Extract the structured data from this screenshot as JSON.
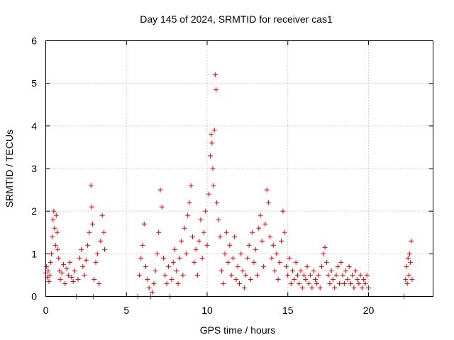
{
  "chart_data": {
    "type": "scatter",
    "title": "Day 145 of 2024, SRMTID for receiver cas1",
    "xlabel": "GPS time / hours",
    "ylabel": "SRMTID / TECUs",
    "xlim": [
      0,
      24
    ],
    "ylim": [
      0,
      6
    ],
    "xticks": [
      "0",
      "5",
      "10",
      "15",
      "20"
    ],
    "yticks": [
      "0",
      "1",
      "2",
      "3",
      "4",
      "5",
      "6"
    ],
    "grid": true,
    "marker": "+",
    "series_color": "#e00000",
    "series": [
      {
        "name": "cas1",
        "points": [
          [
            0.0,
            0.55
          ],
          [
            0.05,
            0.7
          ],
          [
            0.1,
            0.45
          ],
          [
            0.15,
            0.6
          ],
          [
            0.2,
            0.35
          ],
          [
            0.25,
            0.5
          ],
          [
            0.3,
            0.8
          ],
          [
            0.35,
            1.0
          ],
          [
            0.4,
            1.4
          ],
          [
            0.45,
            1.8
          ],
          [
            0.5,
            2.0
          ],
          [
            0.55,
            1.6
          ],
          [
            0.6,
            1.2
          ],
          [
            0.65,
            1.9
          ],
          [
            0.7,
            1.5
          ],
          [
            0.75,
            1.1
          ],
          [
            0.8,
            0.9
          ],
          [
            0.85,
            0.6
          ],
          [
            0.9,
            0.4
          ],
          [
            1.0,
            0.55
          ],
          [
            1.1,
            0.75
          ],
          [
            1.2,
            0.3
          ],
          [
            1.3,
            0.65
          ],
          [
            1.4,
            0.5
          ],
          [
            1.5,
            0.8
          ],
          [
            1.6,
            0.45
          ],
          [
            1.7,
            0.35
          ],
          [
            1.8,
            0.6
          ],
          [
            1.9,
            0.0
          ],
          [
            2.0,
            0.4
          ],
          [
            2.1,
            0.9
          ],
          [
            2.2,
            1.1
          ],
          [
            2.3,
            0.7
          ],
          [
            2.4,
            0.5
          ],
          [
            2.5,
            0.85
          ],
          [
            2.6,
            1.2
          ],
          [
            2.7,
            1.5
          ],
          [
            2.8,
            2.6
          ],
          [
            2.85,
            2.1
          ],
          [
            2.9,
            1.7
          ],
          [
            2.95,
            0.0
          ],
          [
            3.0,
            0.4
          ],
          [
            3.1,
            0.8
          ],
          [
            3.2,
            1.0
          ],
          [
            3.3,
            0.3
          ],
          [
            3.4,
            1.3
          ],
          [
            3.5,
            1.9
          ],
          [
            3.6,
            1.5
          ],
          [
            3.65,
            1.1
          ],
          [
            5.7,
            0.0
          ],
          [
            5.8,
            0.5
          ],
          [
            5.9,
            0.9
          ],
          [
            6.0,
            1.2
          ],
          [
            6.1,
            1.7
          ],
          [
            6.2,
            0.7
          ],
          [
            6.3,
            0.4
          ],
          [
            6.4,
            0.2
          ],
          [
            6.5,
            0.0
          ],
          [
            6.6,
            0.1
          ],
          [
            6.7,
            0.3
          ],
          [
            6.8,
            0.6
          ],
          [
            6.9,
            1.0
          ],
          [
            7.0,
            1.5
          ],
          [
            7.1,
            2.5
          ],
          [
            7.2,
            2.1
          ],
          [
            7.3,
            0.9
          ],
          [
            7.4,
            0.5
          ],
          [
            7.5,
            0.3
          ],
          [
            7.6,
            0.7
          ],
          [
            7.7,
            0.0
          ],
          [
            7.8,
            0.4
          ],
          [
            7.9,
            0.8
          ],
          [
            8.0,
            1.1
          ],
          [
            8.1,
            0.6
          ],
          [
            8.2,
            0.3
          ],
          [
            8.3,
            0.9
          ],
          [
            8.4,
            1.3
          ],
          [
            8.5,
            0.5
          ],
          [
            8.6,
            1.6
          ],
          [
            8.7,
            1.0
          ],
          [
            8.8,
            1.9
          ],
          [
            8.9,
            2.2
          ],
          [
            9.0,
            2.6
          ],
          [
            9.1,
            1.4
          ],
          [
            9.2,
            0.8
          ],
          [
            9.3,
            1.1
          ],
          [
            9.4,
            0.5
          ],
          [
            9.5,
            1.3
          ],
          [
            9.6,
            1.8
          ],
          [
            9.7,
            0.9
          ],
          [
            9.8,
            1.5
          ],
          [
            9.9,
            2.0
          ],
          [
            10.0,
            1.2
          ],
          [
            10.1,
            2.4
          ],
          [
            10.2,
            3.3
          ],
          [
            10.25,
            3.8
          ],
          [
            10.3,
            3.6
          ],
          [
            10.35,
            3.0
          ],
          [
            10.4,
            2.6
          ],
          [
            10.45,
            3.9
          ],
          [
            10.5,
            5.2
          ],
          [
            10.55,
            4.85
          ],
          [
            10.6,
            2.2
          ],
          [
            10.7,
            1.8
          ],
          [
            10.8,
            1.4
          ],
          [
            10.9,
            0.6
          ],
          [
            11.0,
            0.3
          ],
          [
            11.1,
            1.0
          ],
          [
            11.2,
            1.5
          ],
          [
            11.3,
            0.8
          ],
          [
            11.4,
            1.2
          ],
          [
            11.5,
            0.5
          ],
          [
            11.6,
            0.9
          ],
          [
            11.7,
            1.4
          ],
          [
            11.8,
            0.4
          ],
          [
            11.9,
            0.7
          ],
          [
            12.0,
            0.3
          ],
          [
            12.1,
            1.0
          ],
          [
            12.2,
            0.6
          ],
          [
            12.3,
            0.2
          ],
          [
            12.4,
            0.5
          ],
          [
            12.5,
            0.9
          ],
          [
            12.6,
            1.2
          ],
          [
            12.7,
            0.4
          ],
          [
            12.8,
            1.5
          ],
          [
            12.9,
            0.8
          ],
          [
            13.0,
            1.1
          ],
          [
            13.1,
            0.5
          ],
          [
            13.2,
            1.6
          ],
          [
            13.3,
            1.9
          ],
          [
            13.4,
            1.3
          ],
          [
            13.5,
            0.7
          ],
          [
            13.6,
            1.7
          ],
          [
            13.7,
            2.5
          ],
          [
            13.8,
            2.2
          ],
          [
            13.9,
            1.4
          ],
          [
            14.0,
            0.9
          ],
          [
            14.1,
            1.2
          ],
          [
            14.2,
            0.6
          ],
          [
            14.3,
            1.0
          ],
          [
            14.4,
            0.4
          ],
          [
            14.5,
            0.8
          ],
          [
            14.6,
            1.3
          ],
          [
            14.7,
            2.0
          ],
          [
            14.8,
            1.5
          ],
          [
            14.9,
            0.7
          ],
          [
            15.0,
            0.5
          ],
          [
            15.1,
            0.9
          ],
          [
            15.2,
            0.3
          ],
          [
            15.3,
            0.6
          ],
          [
            15.4,
            0.4
          ],
          [
            15.5,
            0.8
          ],
          [
            15.6,
            0.5
          ],
          [
            15.7,
            0.3
          ],
          [
            15.8,
            0.6
          ],
          [
            15.9,
            0.2
          ],
          [
            16.0,
            0.5
          ],
          [
            16.1,
            0.4
          ],
          [
            16.2,
            0.7
          ],
          [
            16.3,
            0.3
          ],
          [
            16.4,
            0.5
          ],
          [
            16.5,
            0.2
          ],
          [
            16.6,
            0.6
          ],
          [
            16.7,
            0.4
          ],
          [
            16.8,
            0.3
          ],
          [
            16.9,
            0.5
          ],
          [
            17.0,
            0.2
          ],
          [
            17.1,
            0.7
          ],
          [
            17.2,
            1.0
          ],
          [
            17.3,
            1.15
          ],
          [
            17.4,
            0.8
          ],
          [
            17.5,
            0.5
          ],
          [
            17.6,
            0.3
          ],
          [
            17.7,
            0.6
          ],
          [
            17.8,
            0.4
          ],
          [
            17.9,
            0.2
          ],
          [
            18.0,
            0.5
          ],
          [
            18.1,
            0.7
          ],
          [
            18.2,
            0.3
          ],
          [
            18.3,
            0.8
          ],
          [
            18.4,
            0.5
          ],
          [
            18.5,
            0.3
          ],
          [
            18.6,
            0.6
          ],
          [
            18.7,
            0.4
          ],
          [
            18.8,
            0.7
          ],
          [
            18.9,
            0.3
          ],
          [
            19.0,
            0.5
          ],
          [
            19.1,
            0.2
          ],
          [
            19.2,
            0.6
          ],
          [
            19.3,
            0.4
          ],
          [
            19.4,
            0.3
          ],
          [
            19.5,
            0.5
          ],
          [
            19.6,
            0.2
          ],
          [
            19.7,
            0.4
          ],
          [
            19.8,
            0.3
          ],
          [
            19.9,
            0.5
          ],
          [
            20.0,
            0.2
          ],
          [
            22.2,
            0.0
          ],
          [
            22.3,
            0.4
          ],
          [
            22.35,
            0.7
          ],
          [
            22.4,
            0.3
          ],
          [
            22.45,
            0.9
          ],
          [
            22.5,
            0.5
          ],
          [
            22.55,
            1.0
          ],
          [
            22.6,
            0.8
          ],
          [
            22.65,
            1.3
          ],
          [
            22.7,
            0.4
          ]
        ]
      }
    ]
  }
}
